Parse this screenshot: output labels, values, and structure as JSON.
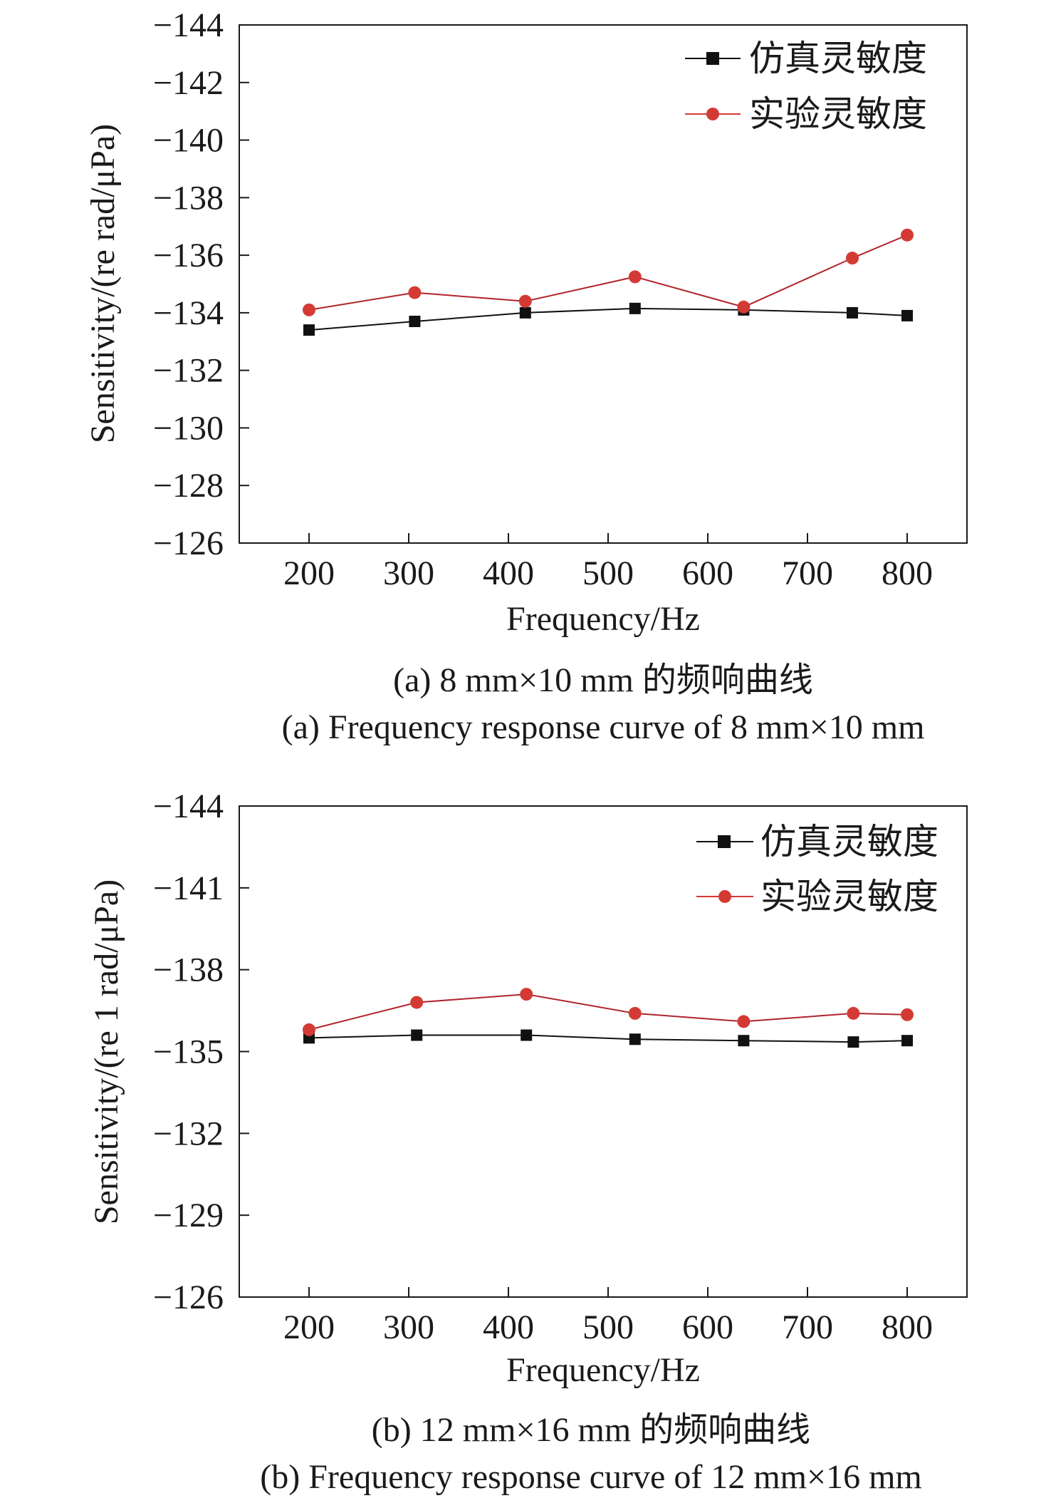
{
  "chart_data": [
    {
      "type": "line",
      "x": [
        200,
        306,
        417,
        527,
        636,
        745,
        800
      ],
      "series": [
        {
          "name": "仿真灵敏度",
          "marker": "square",
          "color": "#111111",
          "values": [
            -133.4,
            -133.7,
            -134.0,
            -134.15,
            -134.1,
            -134.0,
            -133.9
          ]
        },
        {
          "name": "实验灵敏度",
          "marker": "circle",
          "color": "#d43a34",
          "values": [
            -134.1,
            -134.7,
            -134.4,
            -135.25,
            -134.2,
            -135.9,
            -136.7
          ]
        }
      ],
      "xlabel": "Frequency/Hz",
      "ylabel": "Sensitivity/(re rad/μPa)",
      "xlim": [
        130,
        860
      ],
      "ylim": [
        -126,
        -144
      ],
      "xticks": [
        200,
        300,
        400,
        500,
        600,
        700,
        800
      ],
      "xtick_labels": [
        "200",
        "300",
        "400",
        "500",
        "600",
        "700",
        "800"
      ],
      "yticks": [
        -144,
        -142,
        -140,
        -138,
        -136,
        -134,
        -132,
        -130,
        -128,
        -126
      ],
      "ytick_labels": [
        "−144",
        "−142",
        "−140",
        "−138",
        "−136",
        "−134",
        "−132",
        "−130",
        "−128",
        "−126"
      ],
      "grid": false,
      "legend_position": "top-right",
      "caption_cn": "(a)  8 mm×10 mm 的频响曲线",
      "caption_en": "(a)  Frequency response curve of 8 mm×10 mm"
    },
    {
      "type": "line",
      "x": [
        200,
        308,
        418,
        527,
        636,
        746,
        800
      ],
      "series": [
        {
          "name": "仿真灵敏度",
          "marker": "square",
          "color": "#111111",
          "values": [
            -135.5,
            -135.6,
            -135.6,
            -135.45,
            -135.4,
            -135.35,
            -135.4
          ]
        },
        {
          "name": "实验灵敏度",
          "marker": "circle",
          "color": "#d43a34",
          "values": [
            -135.8,
            -136.8,
            -137.1,
            -136.4,
            -136.1,
            -136.4,
            -136.35
          ]
        }
      ],
      "xlabel": "Frequency/Hz",
      "ylabel": "Sensitivity/(re 1 rad/μPa)",
      "xlim": [
        130,
        860
      ],
      "ylim": [
        -126,
        -144
      ],
      "xticks": [
        200,
        300,
        400,
        500,
        600,
        700,
        800
      ],
      "xtick_labels": [
        "200",
        "300",
        "400",
        "500",
        "600",
        "700",
        "800"
      ],
      "yticks": [
        -144,
        -141,
        -138,
        -135,
        -132,
        -129,
        -126
      ],
      "ytick_labels": [
        "−144",
        "−141",
        "−138",
        "−135",
        "−132",
        "−129",
        "−126"
      ],
      "grid": false,
      "legend_position": "top-right",
      "caption_cn": "(b) 12 mm×16 mm 的频响曲线",
      "caption_en": "(b) Frequency response curve of 12 mm×16 mm"
    }
  ]
}
